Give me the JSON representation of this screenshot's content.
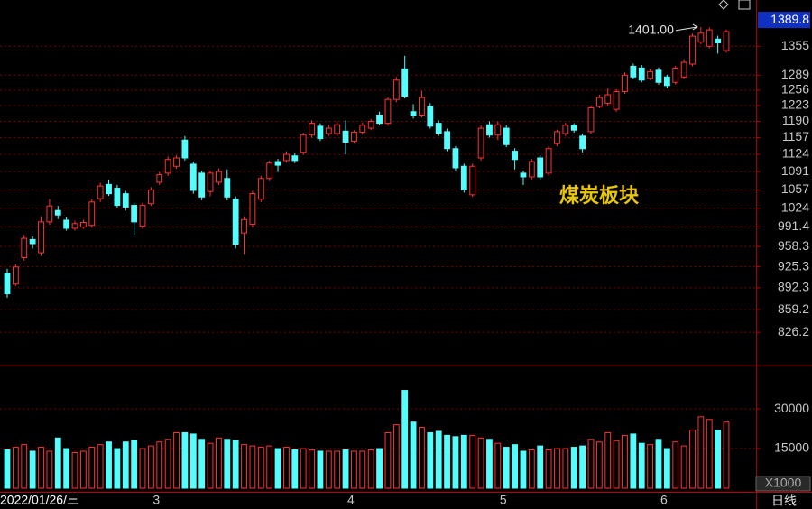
{
  "chart_data": {
    "type": "candlestick",
    "annotation": "煤炭板块",
    "period_label": "日线",
    "volume_unit": "X1000",
    "log_scale": true,
    "grid": true,
    "up_color": "#ff3232",
    "down_color": "#54fcfc",
    "categories": [
      "2022/01/26/三",
      null,
      null,
      null,
      null,
      null,
      null,
      null,
      null,
      null,
      null,
      null,
      null,
      null,
      null,
      null,
      null,
      "3",
      null,
      null,
      null,
      null,
      null,
      null,
      null,
      null,
      null,
      null,
      null,
      null,
      null,
      null,
      null,
      null,
      null,
      null,
      null,
      null,
      null,
      null,
      "4",
      null,
      null,
      null,
      null,
      null,
      null,
      null,
      null,
      null,
      null,
      null,
      null,
      null,
      null,
      null,
      null,
      null,
      "5",
      null,
      null,
      null,
      null,
      null,
      null,
      null,
      null,
      null,
      null,
      null,
      null,
      null,
      null,
      null,
      null,
      null,
      null,
      "6",
      null,
      null,
      null,
      null,
      null,
      null,
      null,
      null
    ],
    "open": [
      915,
      898,
      940,
      970,
      948,
      1000,
      1020,
      1003,
      989,
      991,
      994,
      1041,
      1067,
      1060,
      1050,
      1029,
      993,
      1032,
      1071,
      1088,
      1101,
      1152,
      1105,
      1088,
      1054,
      1071,
      1078,
      1040,
      981,
      996,
      1040,
      1078,
      1110,
      1112,
      1121,
      1128,
      1162,
      1180,
      1165,
      1165,
      1170,
      1150,
      1168,
      1176,
      1203,
      1186,
      1236,
      1303,
      1210,
      1203,
      1221,
      1186,
      1169,
      1135,
      1101,
      1048,
      1117,
      1183,
      1162,
      1176,
      1130,
      1088,
      1081,
      1117,
      1088,
      1145,
      1165,
      1182,
      1160,
      1169,
      1221,
      1228,
      1215,
      1253,
      1309,
      1305,
      1282,
      1300,
      1285,
      1273,
      1285,
      1314,
      1365,
      1355,
      1372,
      1345
    ],
    "high": [
      922,
      929,
      978,
      975,
      1010,
      1040,
      1028,
      1008,
      1002,
      1004,
      1040,
      1070,
      1075,
      1066,
      1055,
      1034,
      1034,
      1062,
      1090,
      1120,
      1122,
      1160,
      1110,
      1093,
      1093,
      1097,
      1095,
      1045,
      1010,
      1055,
      1083,
      1112,
      1115,
      1130,
      1126,
      1167,
      1192,
      1186,
      1183,
      1190,
      1192,
      1172,
      1188,
      1195,
      1210,
      1240,
      1285,
      1333,
      1226,
      1255,
      1228,
      1192,
      1175,
      1140,
      1106,
      1106,
      1182,
      1190,
      1190,
      1182,
      1136,
      1093,
      1115,
      1122,
      1140,
      1173,
      1187,
      1186,
      1165,
      1222,
      1246,
      1260,
      1258,
      1295,
      1315,
      1312,
      1303,
      1306,
      1290,
      1310,
      1325,
      1385,
      1401,
      1400,
      1380,
      1395
    ],
    "low": [
      877,
      895,
      935,
      955,
      943,
      995,
      1005,
      985,
      985,
      988,
      990,
      1035,
      1046,
      1025,
      1020,
      978,
      988,
      1028,
      1066,
      1083,
      1096,
      1112,
      1050,
      1038,
      1045,
      1066,
      1038,
      955,
      945,
      990,
      1035,
      1073,
      1090,
      1108,
      1107,
      1123,
      1157,
      1150,
      1160,
      1160,
      1124,
      1145,
      1163,
      1172,
      1182,
      1181,
      1230,
      1238,
      1196,
      1198,
      1175,
      1160,
      1130,
      1093,
      1052,
      1044,
      1112,
      1157,
      1152,
      1138,
      1095,
      1066,
      1076,
      1076,
      1083,
      1140,
      1160,
      1167,
      1128,
      1165,
      1217,
      1222,
      1210,
      1248,
      1280,
      1273,
      1278,
      1268,
      1260,
      1268,
      1280,
      1309,
      1360,
      1350,
      1338,
      1340
    ],
    "close": [
      883,
      925,
      972,
      963,
      1000,
      1028,
      1012,
      989,
      997,
      999,
      1035,
      1064,
      1050,
      1029,
      1026,
      1000,
      1029,
      1057,
      1085,
      1114,
      1117,
      1117,
      1056,
      1044,
      1088,
      1091,
      1044,
      962,
      1004,
      1050,
      1078,
      1107,
      1103,
      1124,
      1112,
      1162,
      1186,
      1155,
      1176,
      1183,
      1148,
      1168,
      1182,
      1190,
      1186,
      1236,
      1278,
      1243,
      1203,
      1240,
      1180,
      1166,
      1135,
      1098,
      1057,
      1101,
      1176,
      1162,
      1183,
      1143,
      1114,
      1081,
      1110,
      1081,
      1135,
      1169,
      1182,
      1172,
      1135,
      1218,
      1240,
      1246,
      1253,
      1289,
      1285,
      1278,
      1297,
      1273,
      1266,
      1305,
      1318,
      1379,
      1386,
      1394,
      1363,
      1389.8
    ],
    "volume": [
      14500,
      15500,
      16500,
      14000,
      15500,
      14000,
      19000,
      15000,
      13500,
      14000,
      15500,
      16500,
      17500,
      15000,
      17500,
      18000,
      15000,
      16000,
      17500,
      18500,
      21000,
      21000,
      20500,
      18500,
      17000,
      19000,
      18500,
      18000,
      16500,
      16000,
      15500,
      16000,
      15000,
      15500,
      14500,
      15000,
      14500,
      14000,
      14000,
      14000,
      14500,
      14000,
      14000,
      14500,
      15000,
      21000,
      24000,
      37000,
      25000,
      23000,
      21000,
      21500,
      20000,
      19500,
      20000,
      20000,
      19000,
      18500,
      17000,
      15500,
      16500,
      14000,
      14500,
      16000,
      14500,
      15000,
      15000,
      15500,
      16000,
      18500,
      17500,
      21000,
      18000,
      20000,
      20500,
      17000,
      16500,
      18500,
      15000,
      17500,
      16000,
      22000,
      27000,
      26000,
      22000,
      25000
    ],
    "ylim": [
      780,
      1468
    ],
    "yticks": [
      1355,
      1289,
      1256,
      1223,
      1190,
      1157,
      1124,
      1091,
      1057,
      1024,
      991.4,
      958.3,
      925.3,
      892.3,
      859.2,
      826.2
    ],
    "max_annotation": {
      "value": 1401,
      "label": "1401.00"
    },
    "volume_ylim": [
      0,
      46400
    ],
    "volume_yticks": [
      30000,
      15000
    ]
  }
}
